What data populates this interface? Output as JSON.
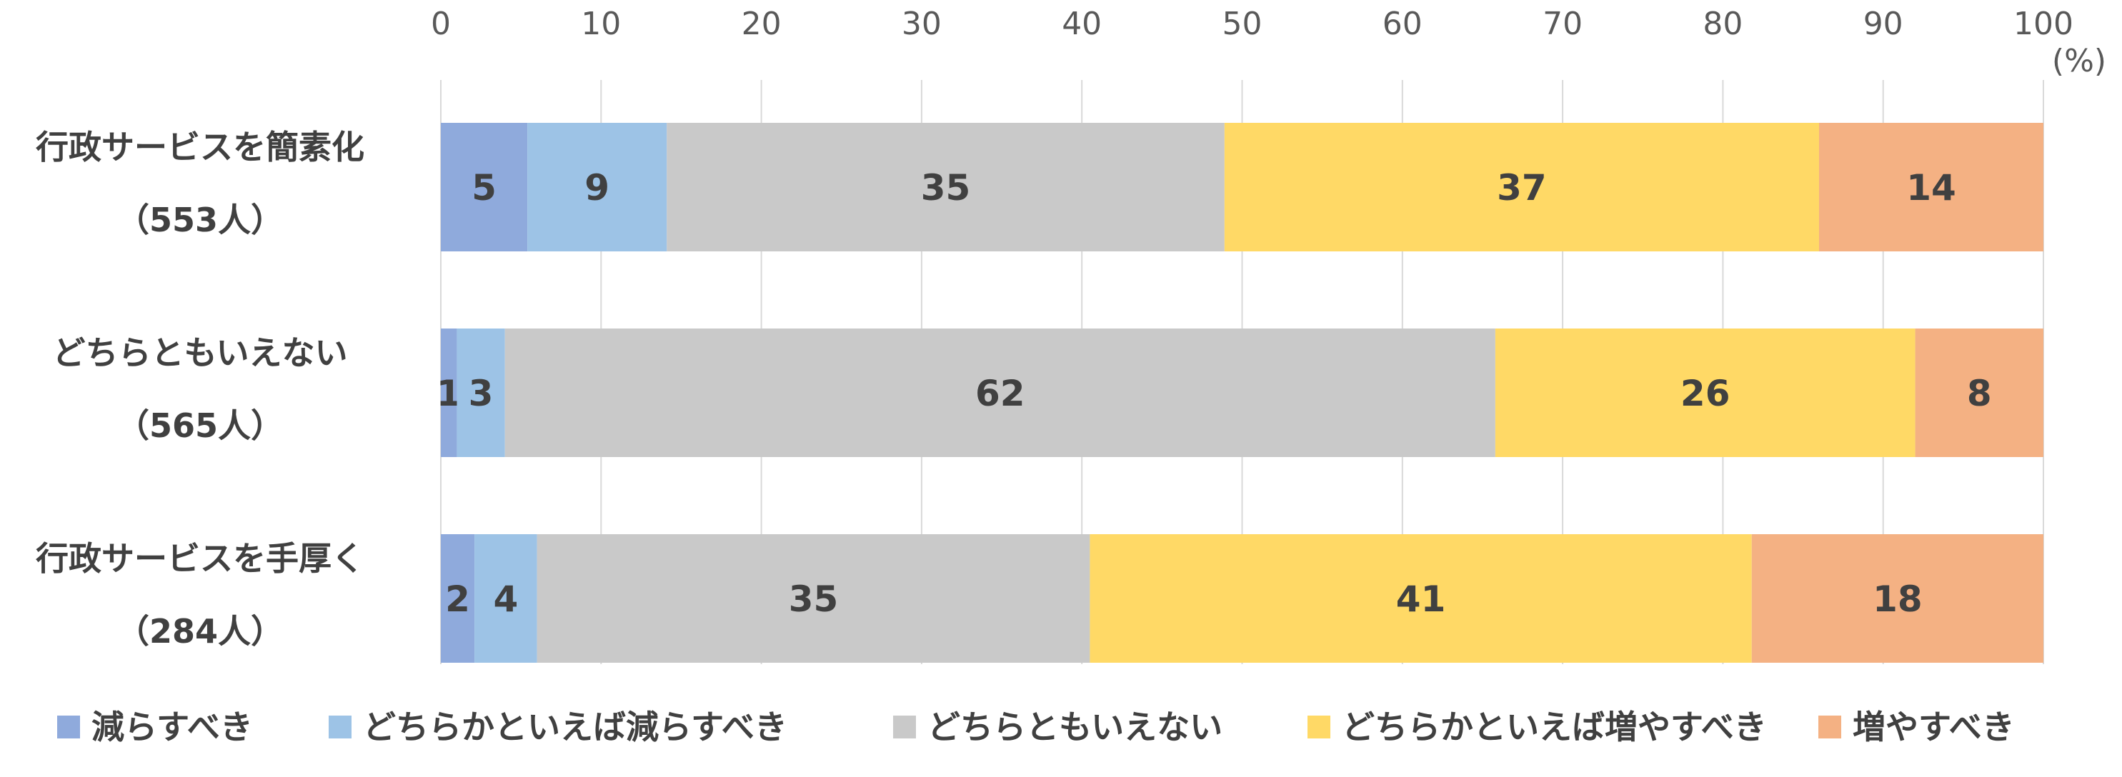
{
  "chart_data": {
    "type": "bar",
    "orientation": "horizontal",
    "stacked": true,
    "unit_label": "(%)",
    "xlim": [
      0,
      100
    ],
    "x_ticks": [
      "0",
      "10",
      "20",
      "30",
      "40",
      "50",
      "60",
      "70",
      "80",
      "90",
      "100"
    ],
    "grid": true,
    "legend_position": "bottom",
    "categories": [
      {
        "line1": "行政サービスを簡素化",
        "line2": "（553人）"
      },
      {
        "line1": "どちらともいえない",
        "line2": "（565人）"
      },
      {
        "line1": "行政サービスを手厚く",
        "line2": "（284人）"
      }
    ],
    "series": [
      {
        "name": "減らすべき",
        "color": "#8faadc",
        "values": [
          5.4,
          1.0,
          2.1
        ],
        "labels": [
          "5",
          "1",
          "2"
        ]
      },
      {
        "name": "どちらかといえば減らすべき",
        "color": "#9dc3e6",
        "values": [
          8.7,
          3.0,
          3.9
        ],
        "labels": [
          "9",
          "3",
          "4"
        ]
      },
      {
        "name": "どちらともいえない",
        "color": "#c9c9c9",
        "values": [
          34.8,
          61.8,
          34.5
        ],
        "labels": [
          "35",
          "62",
          "35"
        ]
      },
      {
        "name": "どちらかといえば増やすべき",
        "color": "#ffd966",
        "values": [
          37.1,
          26.2,
          41.3
        ],
        "labels": [
          "37",
          "26",
          "41"
        ]
      },
      {
        "name": "増やすべき",
        "color": "#f4b183",
        "values": [
          14.0,
          8.0,
          18.2
        ],
        "labels": [
          "14",
          "8",
          "18"
        ]
      }
    ]
  }
}
